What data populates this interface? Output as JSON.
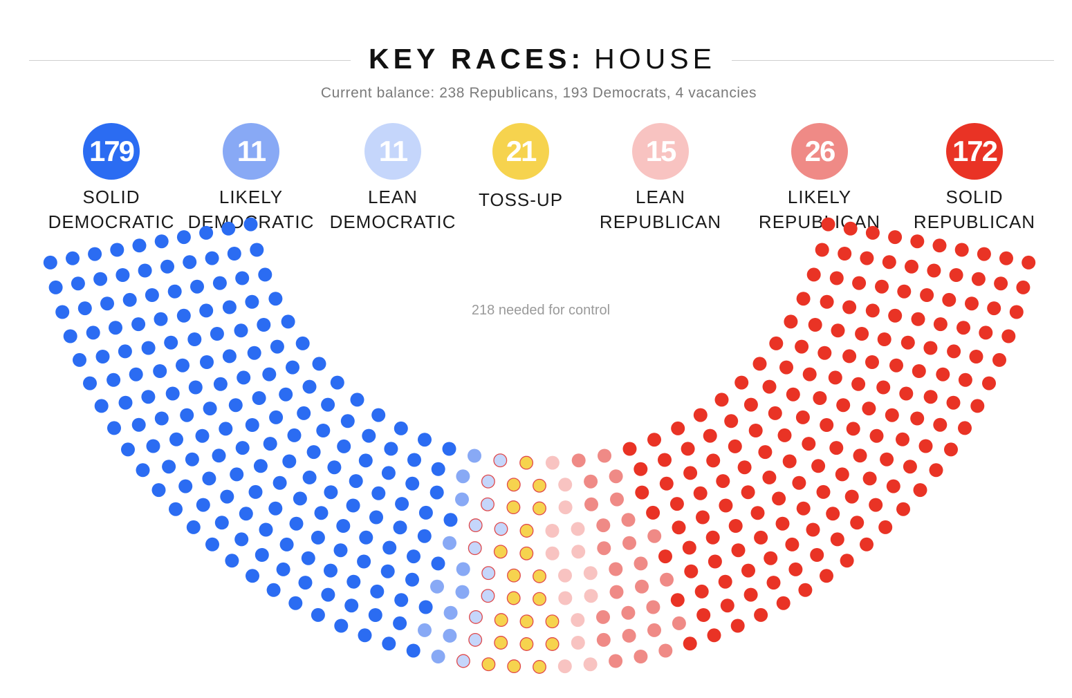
{
  "title": {
    "bold": "KEY RACES:",
    "light": "HOUSE"
  },
  "subtitle": "Current balance: 238 Republicans, 193 Democrats, 4 vacancies",
  "control_note": "218 needed for control",
  "categories": [
    {
      "key": "solid_dem",
      "count": "179",
      "label": "SOLID\nDEMOCRATIC",
      "color": "#2b6cf2"
    },
    {
      "key": "likely_dem",
      "count": "11",
      "label": "LIKELY\nDEMOCRATIC",
      "color": "#88a9f5"
    },
    {
      "key": "lean_dem",
      "count": "11",
      "label": "LEAN\nDEMOCRATIC",
      "color": "#c5d6fb"
    },
    {
      "key": "tossup",
      "count": "21",
      "label": "TOSS-UP",
      "color": "#f6d34e"
    },
    {
      "key": "lean_rep",
      "count": "15",
      "label": "LEAN\nREPUBLICAN",
      "color": "#f8c3c1"
    },
    {
      "key": "likely_rep",
      "count": "26",
      "label": "LIKELY\nREPUBLICAN",
      "color": "#ef8a86"
    },
    {
      "key": "solid_rep",
      "count": "172",
      "label": "SOLID\nREPUBLICAN",
      "color": "#e93325"
    }
  ],
  "chart_data": {
    "type": "hemicycle",
    "total_seats": 435,
    "seats": [
      {
        "category": "SOLID DEMOCRATIC",
        "seats": 179
      },
      {
        "category": "LIKELY DEMOCRATIC",
        "seats": 11
      },
      {
        "category": "LEAN DEMOCRATIC",
        "seats": 11
      },
      {
        "category": "TOSS-UP",
        "seats": 21
      },
      {
        "category": "LEAN REPUBLICAN",
        "seats": 15
      },
      {
        "category": "LIKELY REPUBLICAN",
        "seats": 26
      },
      {
        "category": "SOLID REPUBLICAN",
        "seats": 172
      }
    ],
    "control_threshold": 218,
    "seat_outline": {
      "lean_dem": "#e0484a",
      "tossup": "#e0484a"
    }
  }
}
